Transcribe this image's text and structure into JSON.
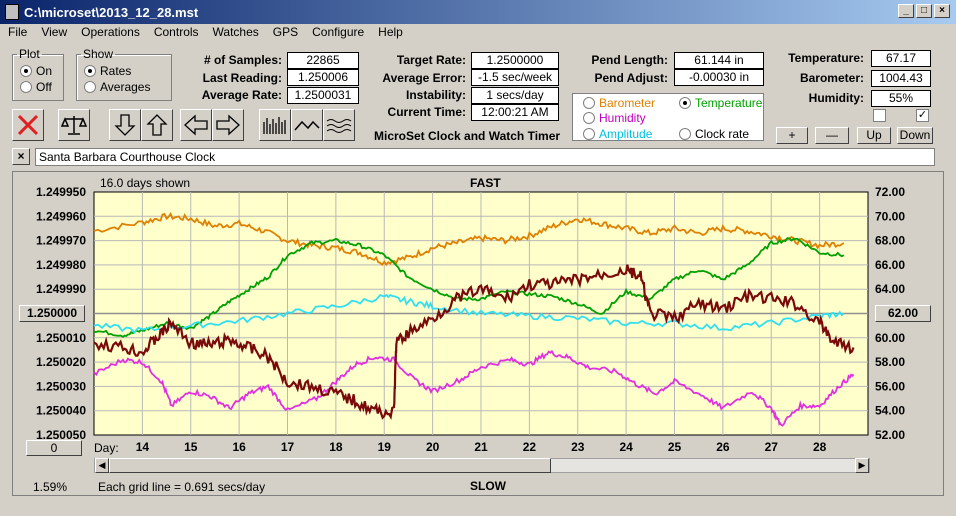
{
  "window": {
    "title": "C:\\microset\\2013_12_28.mst"
  },
  "menu": [
    "File",
    "View",
    "Operations",
    "Controls",
    "Watches",
    "GPS",
    "Configure",
    "Help"
  ],
  "plot_group": {
    "label": "Plot",
    "on_label": "On",
    "off_label": "Off",
    "selected": "On"
  },
  "show_group": {
    "label": "Show",
    "rates_label": "Rates",
    "averages_label": "Averages",
    "selected": "Rates"
  },
  "stats": {
    "samples_label": "# of Samples:",
    "samples": "22865",
    "last_reading_label": "Last Reading:",
    "last_reading": "1.250006",
    "avg_rate_label": "Average Rate:",
    "avg_rate": "1.2500031",
    "target_rate_label": "Target Rate:",
    "target_rate": "1.2500000",
    "avg_error_label": "Average Error:",
    "avg_error": "-1.5 sec/week",
    "instability_label": "Instability:",
    "instability": "1 secs/day",
    "current_time_label": "Current Time:",
    "current_time": "12:00:21 AM",
    "pend_length_label": "Pend Length:",
    "pend_length": "61.144 in",
    "pend_adjust_label": "Pend Adjust:",
    "pend_adjust": "-0.00030 in",
    "temperature_label": "Temperature:",
    "temperature": "67.17",
    "barometer_label": "Barometer:",
    "barometer": "1004.43",
    "humidity_label": "Humidity:",
    "humidity": "55%"
  },
  "app_name": "MicroSet Clock and Watch Timer",
  "sensor_options": [
    {
      "label": "Barometer",
      "color": "#e08000",
      "selected": false
    },
    {
      "label": "Temperature",
      "color": "#00a000",
      "selected": true
    },
    {
      "label": "Humidity",
      "color": "#c000c0",
      "selected": false
    },
    {
      "label": "Clock rate",
      "color": "#000000",
      "selected": false
    },
    {
      "label": "Amplitude",
      "color": "#00c0e0",
      "selected": false
    }
  ],
  "scale_buttons": {
    "plus": "+",
    "minus": "—",
    "up": "Up",
    "down": "Down"
  },
  "checkbox_states": [
    false,
    true
  ],
  "clock_name": "Santa Barbara Courthouse Clock",
  "graph": {
    "days_shown": "16.0 days shown",
    "top_label": "FAST",
    "bottom_label": "SLOW",
    "day_prefix": "Day:",
    "left_center_button": "1.250000",
    "left_bottom_button": "0",
    "right_center_button": "62.00",
    "zoom_percent": "1.59%",
    "grid_note": "Each grid line = 0.691 secs/day"
  },
  "chart_data": {
    "type": "line",
    "left_axis_labels": [
      "1.249950",
      "1.249960",
      "1.249970",
      "1.249980",
      "1.249990",
      "1.250000",
      "1.250010",
      "1.250020",
      "1.250030",
      "1.250040",
      "1.250050"
    ],
    "right_axis_labels": [
      "72.00",
      "70.00",
      "68.00",
      "66.00",
      "64.00",
      "62.00",
      "60.00",
      "58.00",
      "56.00",
      "54.00",
      "52.00"
    ],
    "x_ticks": [
      "14",
      "15",
      "16",
      "17",
      "18",
      "19",
      "20",
      "21",
      "22",
      "23",
      "24",
      "25",
      "26",
      "27",
      "28"
    ],
    "xlim": [
      13.0,
      29.0
    ],
    "left_ylim": [
      1.24995,
      1.25005
    ],
    "right_ylim": [
      52,
      72
    ],
    "grid": true,
    "series": [
      {
        "color": "#e08000",
        "axis": "right",
        "x": [
          13,
          14,
          14.5,
          15,
          15.5,
          16,
          16.5,
          17,
          17.5,
          18,
          18.5,
          19,
          19.5,
          20,
          20.5,
          21,
          21.5,
          22,
          22.5,
          23,
          23.5,
          24,
          24.5,
          25,
          25.5,
          26,
          26.5,
          27,
          27.5,
          28,
          28.5
        ],
        "values": [
          68.8,
          69.5,
          70.0,
          69.8,
          69.2,
          69.4,
          68.8,
          68.0,
          67.6,
          67.4,
          67.0,
          66.2,
          66.6,
          67.4,
          67.8,
          68.2,
          68.0,
          68.4,
          69.2,
          69.8,
          69.4,
          69.0,
          68.6,
          69.0,
          68.6,
          69.0,
          68.8,
          68.4,
          68.0,
          67.6,
          67.8
        ]
      },
      {
        "color": "#00a000",
        "axis": "right",
        "x": [
          13,
          13.6,
          14,
          14.5,
          15,
          15.4,
          15.8,
          16.2,
          16.6,
          17,
          17.5,
          18,
          18.5,
          19,
          19.5,
          20,
          20.5,
          21,
          21.5,
          22,
          22.5,
          23,
          23.5,
          24,
          24.5,
          25,
          25.5,
          26,
          26.5,
          27,
          27.5,
          28,
          28.5
        ],
        "values": [
          60.6,
          60.2,
          60.6,
          61.2,
          60.8,
          61.8,
          63.0,
          64.0,
          65.0,
          66.8,
          67.8,
          68.0,
          67.6,
          66.8,
          65.0,
          64.0,
          63.2,
          63.2,
          63.8,
          63.6,
          63.4,
          62.8,
          62.0,
          63.8,
          63.2,
          64.8,
          65.6,
          64.8,
          66.0,
          67.8,
          68.2,
          67.0,
          66.8
        ]
      },
      {
        "color": "#30e0f0",
        "axis": "right",
        "x": [
          13,
          14,
          15,
          16,
          17,
          18,
          19,
          19.5,
          20,
          21,
          22,
          23,
          24,
          25,
          26,
          27,
          28,
          28.5
        ],
        "values": [
          61.0,
          60.6,
          61.0,
          61.4,
          62.0,
          62.6,
          63.4,
          63.0,
          62.6,
          62.0,
          61.8,
          61.6,
          61.2,
          61.2,
          60.8,
          61.2,
          61.8,
          62.0
        ]
      },
      {
        "color": "#e030e0",
        "axis": "right",
        "x": [
          13,
          13.6,
          14,
          14.4,
          14.6,
          15,
          15.4,
          15.8,
          16.2,
          16.6,
          17,
          17.6,
          18,
          18.4,
          18.8,
          19.2,
          19.6,
          20,
          20.6,
          21,
          21.6,
          22,
          22.4,
          22.8,
          23.2,
          23.8,
          24.2,
          24.6,
          25,
          25.6,
          26,
          26.6,
          27,
          27.2,
          27.6,
          28,
          28.4,
          28.7
        ],
        "values": [
          57.0,
          58.2,
          58.0,
          56.4,
          54.4,
          55.6,
          55.2,
          54.2,
          55.4,
          56.0,
          54.0,
          55.0,
          56.4,
          57.8,
          58.4,
          58.2,
          56.6,
          55.6,
          56.6,
          57.6,
          58.2,
          57.8,
          58.8,
          58.4,
          57.6,
          57.2,
          56.2,
          55.4,
          56.4,
          55.2,
          54.2,
          55.6,
          54.2,
          52.8,
          54.4,
          54.4,
          56.0,
          57.0
        ]
      },
      {
        "color": "#7a0a0a",
        "axis": "left",
        "x": [
          13,
          13.6,
          14,
          14.3,
          14.6,
          15,
          15.4,
          15.8,
          16.2,
          16.6,
          17,
          17.5,
          18,
          18.4,
          18.8,
          19.2,
          19.25,
          19.5,
          20,
          20.5,
          21,
          21.5,
          22,
          22.5,
          23,
          23.5,
          24,
          24.3,
          24.5,
          25,
          25.5,
          26,
          26.5,
          27,
          27.5,
          28,
          28.3,
          28.7
        ],
        "values": [
          1.250012,
          1.250014,
          1.250016,
          1.25001,
          1.250004,
          1.250012,
          1.250013,
          1.250011,
          1.250014,
          1.250018,
          1.250028,
          1.25003,
          1.250033,
          1.250036,
          1.25004,
          1.250041,
          1.250012,
          1.250008,
          1.250002,
          1.249994,
          1.24999,
          1.249994,
          1.249988,
          1.249988,
          1.249986,
          1.249984,
          1.249982,
          1.249985,
          1.25,
          1.250002,
          1.249996,
          1.249998,
          1.249993,
          1.249994,
          1.249996,
          1.250004,
          1.250012,
          1.250014
        ]
      }
    ]
  }
}
